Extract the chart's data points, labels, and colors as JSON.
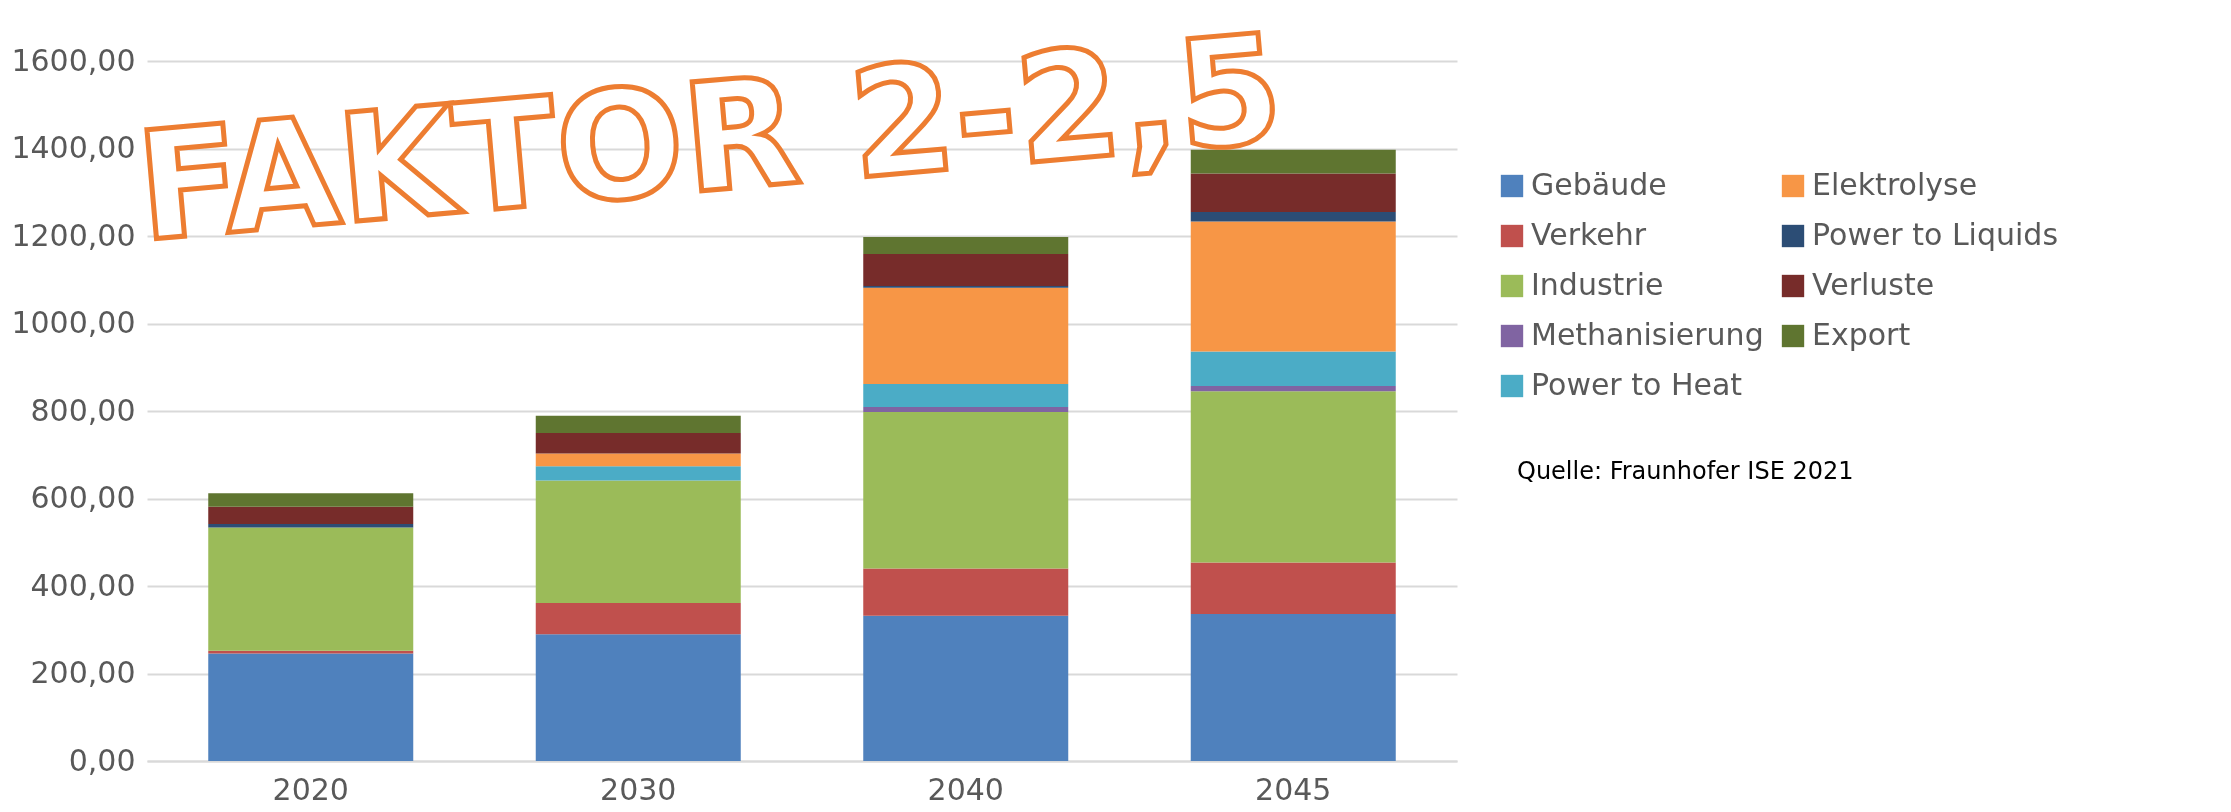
{
  "chart_data": {
    "type": "bar",
    "stacked": true,
    "categories": [
      "2020",
      "2030",
      "2040",
      "2045"
    ],
    "series": [
      {
        "name": "Gebäude",
        "color": "#4f81bd",
        "values": [
          246,
          290,
          332,
          336
        ]
      },
      {
        "name": "Verkehr",
        "color": "#c0504d",
        "values": [
          6,
          71,
          108,
          118
        ]
      },
      {
        "name": "Industrie",
        "color": "#9bbb59",
        "values": [
          282,
          280,
          358,
          391
        ]
      },
      {
        "name": "Methanisierung",
        "color": "#8064a2",
        "values": [
          0,
          0,
          11,
          12
        ]
      },
      {
        "name": "Power to Heat",
        "color": "#4bacc6",
        "values": [
          0,
          33,
          53,
          79
        ]
      },
      {
        "name": "Elektrolyse",
        "color": "#f79646",
        "values": [
          0,
          29,
          220,
          297
        ]
      },
      {
        "name": "Power to Liquids",
        "color": "#2c4d75",
        "values": [
          8,
          0,
          4,
          22
        ]
      },
      {
        "name": "Verluste",
        "color": "#772c2a",
        "values": [
          39,
          47,
          73,
          88
        ]
      },
      {
        "name": "Export",
        "color": "#5f7530",
        "values": [
          31,
          39,
          39,
          54
        ]
      }
    ],
    "ylim": [
      0,
      1600
    ],
    "yticks": [
      {
        "value": 0,
        "label": "0,00"
      },
      {
        "value": 200,
        "label": "200,00"
      },
      {
        "value": 400,
        "label": "400,00"
      },
      {
        "value": 600,
        "label": "600,00"
      },
      {
        "value": 800,
        "label": "800,00"
      },
      {
        "value": 1000,
        "label": "1000,00"
      },
      {
        "value": 1200,
        "label": "1200,00"
      },
      {
        "value": 1400,
        "label": "1400,00"
      },
      {
        "value": 1600,
        "label": "1600,00"
      }
    ],
    "grid": "y",
    "legend": "right",
    "annotations": [
      "FAKTOR 2-2,5",
      "Quelle: Fraunhofer ISE 2021"
    ]
  }
}
